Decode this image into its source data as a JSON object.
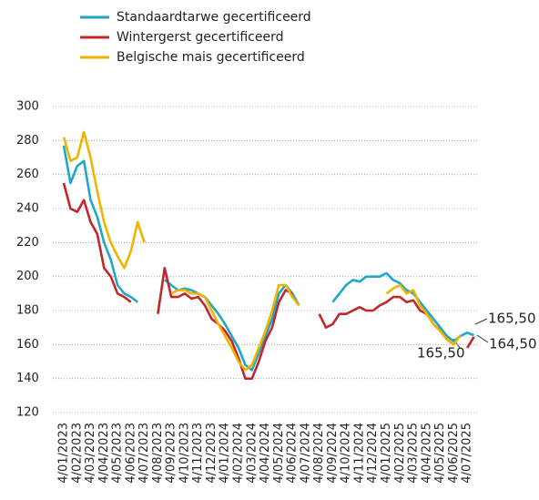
{
  "chart_data": {
    "type": "line",
    "categories": [
      "4/01/2023",
      null,
      "4/02/2023",
      null,
      "4/03/2023",
      null,
      "4/04/2023",
      null,
      "4/05/2023",
      null,
      "4/06/2023",
      null,
      "4/07/2023",
      null,
      "4/08/2023",
      null,
      "4/09/2023",
      null,
      "4/10/2023",
      null,
      "4/11/2023",
      null,
      "4/12/2023",
      null,
      "4/01/2024",
      null,
      "4/02/2024",
      null,
      "4/03/2024",
      null,
      "4/04/2024",
      null,
      "4/05/2024",
      null,
      "4/06/2024",
      null,
      "4/07/2024",
      null,
      "4/08/2024",
      null,
      "4/09/2024",
      null,
      "4/10/2024",
      null,
      "4/11/2024",
      null,
      "4/12/2024",
      null,
      "4/01/2025",
      null,
      "4/02/2025",
      null,
      "4/03/2025",
      null,
      "4/04/2025",
      null,
      "4/05/2025",
      null,
      "4/06/2025",
      null,
      "4/07/2025",
      null
    ],
    "series": [
      {
        "name": "Standaardtarwe gecertificeerd",
        "color": "#1ea7c9",
        "values": [
          277,
          255,
          265,
          268,
          245,
          235,
          220,
          210,
          195,
          190,
          188,
          185,
          null,
          null,
          null,
          198,
          195,
          192,
          193,
          192,
          190,
          188,
          183,
          178,
          172,
          165,
          158,
          148,
          145,
          155,
          165,
          175,
          190,
          195,
          190,
          183,
          null,
          null,
          null,
          null,
          185,
          190,
          195,
          198,
          197,
          200,
          200,
          200,
          202,
          198,
          196,
          192,
          190,
          185,
          180,
          175,
          170,
          165,
          162,
          165,
          167,
          165.5
        ]
      },
      {
        "name": "Wintergerst gecertificeerd",
        "color": "#c1272d",
        "values": [
          255,
          240,
          238,
          245,
          232,
          225,
          205,
          200,
          190,
          188,
          185,
          null,
          null,
          null,
          178,
          205,
          188,
          188,
          190,
          187,
          188,
          183,
          175,
          172,
          168,
          162,
          152,
          140,
          140,
          150,
          162,
          170,
          185,
          192,
          190,
          null,
          null,
          null,
          178,
          170,
          172,
          178,
          178,
          180,
          182,
          180,
          180,
          183,
          185,
          188,
          188,
          185,
          186,
          180,
          178,
          172,
          168,
          163,
          160,
          null,
          158,
          164.5
        ]
      },
      {
        "name": "Belgische mais gecertificeerd",
        "color": "#f0b400",
        "values": [
          282,
          268,
          270,
          285,
          270,
          250,
          232,
          220,
          212,
          205,
          215,
          232,
          220,
          null,
          null,
          null,
          190,
          192,
          192,
          190,
          190,
          188,
          180,
          172,
          165,
          158,
          150,
          145,
          148,
          158,
          168,
          180,
          195,
          195,
          188,
          183,
          null,
          null,
          null,
          null,
          null,
          null,
          null,
          null,
          null,
          null,
          null,
          null,
          190,
          193,
          195,
          190,
          192,
          183,
          178,
          172,
          168,
          163,
          160,
          165.5,
          null,
          null
        ]
      }
    ],
    "annotations": [
      "165,50",
      "164,50",
      "165,50"
    ],
    "ylim": [
      120,
      300
    ],
    "yticks": [
      120,
      140,
      160,
      180,
      200,
      220,
      240,
      260,
      280,
      300
    ],
    "grid": true,
    "legend": "top-left"
  }
}
